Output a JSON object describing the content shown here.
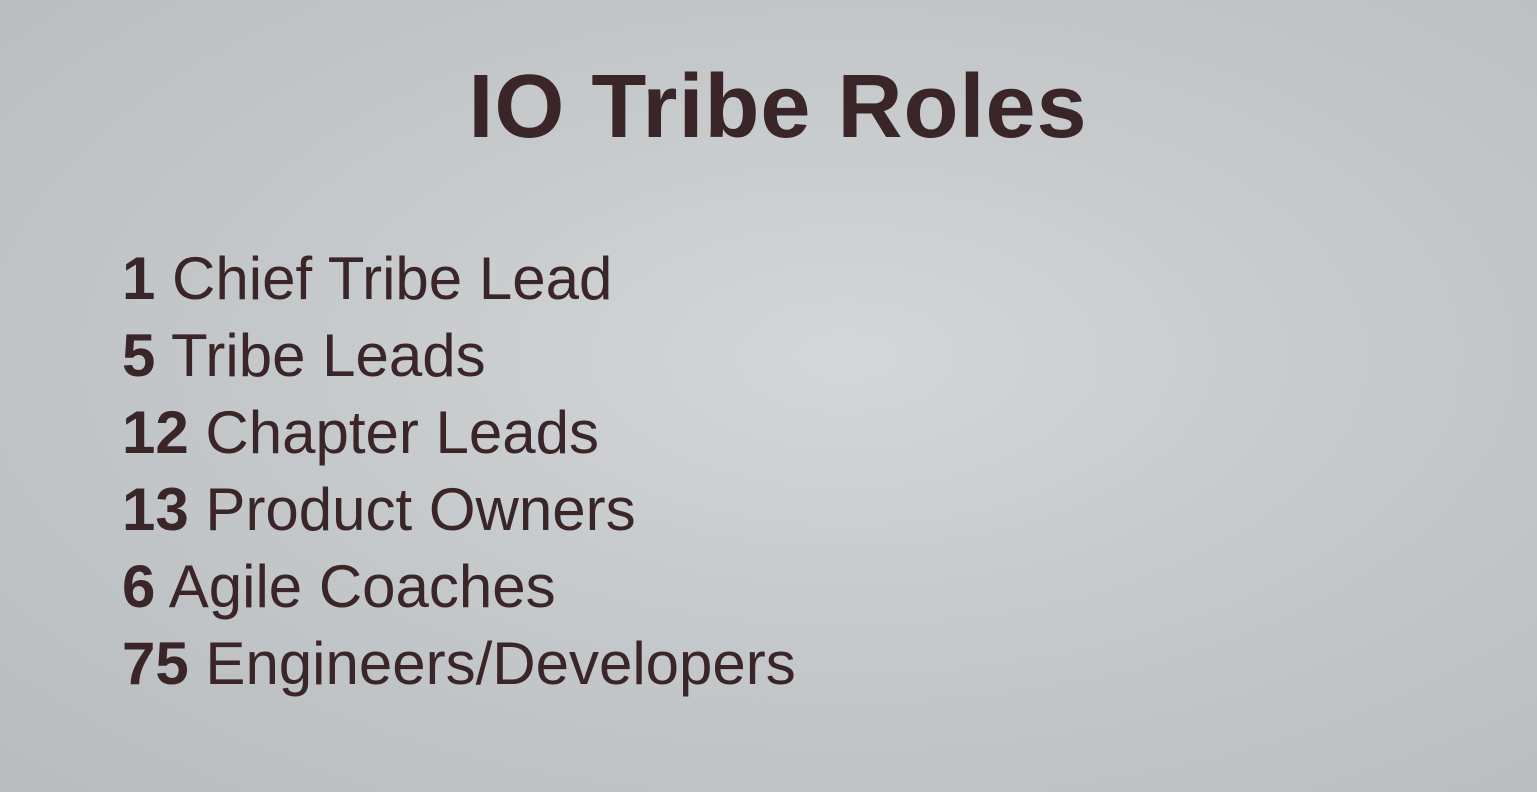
{
  "slide": {
    "title": "IO Tribe Roles",
    "roles": [
      {
        "count": "1",
        "label": "Chief Tribe Lead"
      },
      {
        "count": "5",
        "label": "Tribe Leads"
      },
      {
        "count": "12",
        "label": "Chapter Leads"
      },
      {
        "count": "13",
        "label": "Product Owners"
      },
      {
        "count": "6",
        "label": "Agile Coaches"
      },
      {
        "count": "75",
        "label": "Engineers/Developers"
      }
    ]
  },
  "colors": {
    "text": "#3a2528",
    "background": "#c6c9cb"
  }
}
